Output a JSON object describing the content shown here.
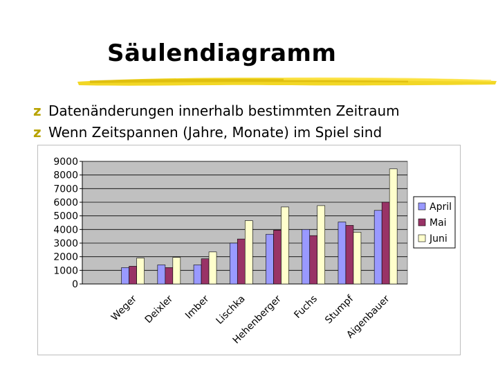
{
  "slide": {
    "title": "Säulendiagramm",
    "bullet_icon": "z-bullet-icon",
    "bullets": [
      "Datenänderungen innerhalb bestimmten Zeitraum",
      "Wenn Zeitspannen (Jahre, Monate) im Spiel sind"
    ]
  },
  "colors": {
    "plot_area": "#c0c0c0",
    "bullet": "#b8a300",
    "brush": "#e8c800"
  },
  "chart_data": {
    "type": "bar",
    "categories": [
      "Weger",
      "Deixler",
      "Imber",
      "Lischka",
      "Hehenberger",
      "Fuchs",
      "Stumpf",
      "Aigenbauer"
    ],
    "series": [
      {
        "name": "April",
        "color": "#9999ff",
        "values": [
          1200,
          1400,
          1400,
          3000,
          3650,
          4000,
          4550,
          5400
        ]
      },
      {
        "name": "Mai",
        "color": "#993366",
        "values": [
          1300,
          1200,
          1850,
          3300,
          3950,
          3550,
          4300,
          6000
        ]
      },
      {
        "name": "Juni",
        "color": "#ffffcc",
        "values": [
          1900,
          1950,
          2350,
          4650,
          5650,
          5750,
          3800,
          8450
        ]
      }
    ],
    "yticks": [
      0,
      1000,
      2000,
      3000,
      4000,
      5000,
      6000,
      7000,
      8000,
      9000
    ],
    "ylim": [
      0,
      9000
    ],
    "grid": true,
    "legend_position": "right",
    "title": "",
    "xlabel": "",
    "ylabel": ""
  }
}
